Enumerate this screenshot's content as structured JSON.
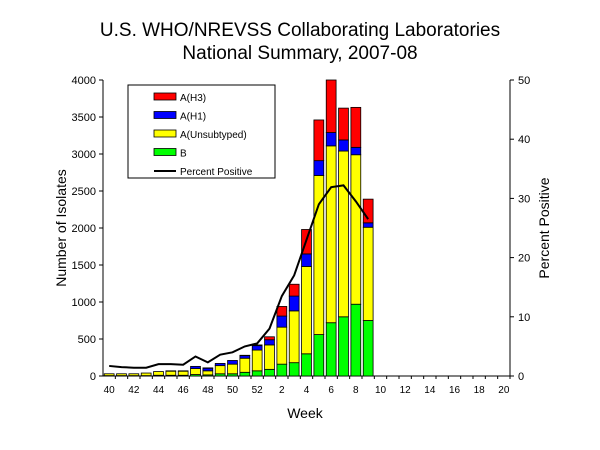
{
  "chart_data": {
    "type": "bar",
    "title": [
      "U.S. WHO/NREVSS Collaborating Laboratories",
      "National Summary, 2007-08"
    ],
    "xlabel": "Week",
    "ylabel": "Number of Isolates",
    "y2label": "Percent Positive",
    "ylim": [
      0,
      4000
    ],
    "y2lim": [
      0,
      50
    ],
    "yticks": [
      "0",
      "500",
      "1000",
      "1500",
      "2000",
      "2500",
      "3000",
      "3500",
      "4000"
    ],
    "y2ticks": [
      "0",
      "10",
      "20",
      "30",
      "40",
      "50"
    ],
    "weeks": [
      40,
      41,
      42,
      43,
      44,
      45,
      46,
      47,
      48,
      49,
      50,
      51,
      52,
      1,
      2,
      3,
      4,
      5,
      6,
      7,
      8,
      9,
      10,
      11,
      12,
      13,
      14,
      15,
      16,
      17,
      18,
      19,
      20
    ],
    "xtick_labels": [
      "40",
      "42",
      "44",
      "46",
      "48",
      "50",
      "52",
      "2",
      "4",
      "6",
      "8",
      "10",
      "12",
      "14",
      "16",
      "18",
      "20"
    ],
    "stacked": true,
    "grid": false,
    "legend_position": "top-left",
    "series": [
      {
        "name": "B",
        "color": "#00ff00",
        "values": [
          5,
          5,
          5,
          5,
          10,
          10,
          10,
          20,
          15,
          30,
          30,
          50,
          70,
          90,
          160,
          180,
          300,
          560,
          720,
          800,
          970,
          750
        ]
      },
      {
        "name": "A(Unsubtyped)",
        "color": "#ffff00",
        "values": [
          25,
          25,
          25,
          35,
          50,
          55,
          55,
          80,
          55,
          110,
          130,
          190,
          280,
          330,
          500,
          700,
          1180,
          2150,
          2390,
          2240,
          2020,
          1260
        ]
      },
      {
        "name": "A(H1)",
        "color": "#0000ff",
        "values": [
          0,
          0,
          0,
          0,
          0,
          0,
          0,
          30,
          35,
          30,
          50,
          35,
          60,
          70,
          150,
          200,
          170,
          200,
          180,
          150,
          100,
          60
        ]
      },
      {
        "name": "A(H3)",
        "color": "#ff0000",
        "values": [
          0,
          0,
          0,
          0,
          0,
          5,
          5,
          0,
          5,
          0,
          0,
          5,
          10,
          40,
          130,
          160,
          330,
          550,
          710,
          430,
          540,
          320
        ]
      }
    ],
    "line": {
      "name": "Percent Positive",
      "color": "#000000",
      "axis": "right",
      "values": [
        1.7,
        1.5,
        1.4,
        1.4,
        2.0,
        2.0,
        1.9,
        3.3,
        2.3,
        3.6,
        4.0,
        5.0,
        5.5,
        8.0,
        13.5,
        17.0,
        23.0,
        29.0,
        31.9,
        32.2,
        29.5,
        26.5
      ]
    },
    "legend": [
      "A(H3)",
      "A(H1)",
      "A(Unsubtyped)",
      "B",
      "Percent Positive"
    ]
  }
}
